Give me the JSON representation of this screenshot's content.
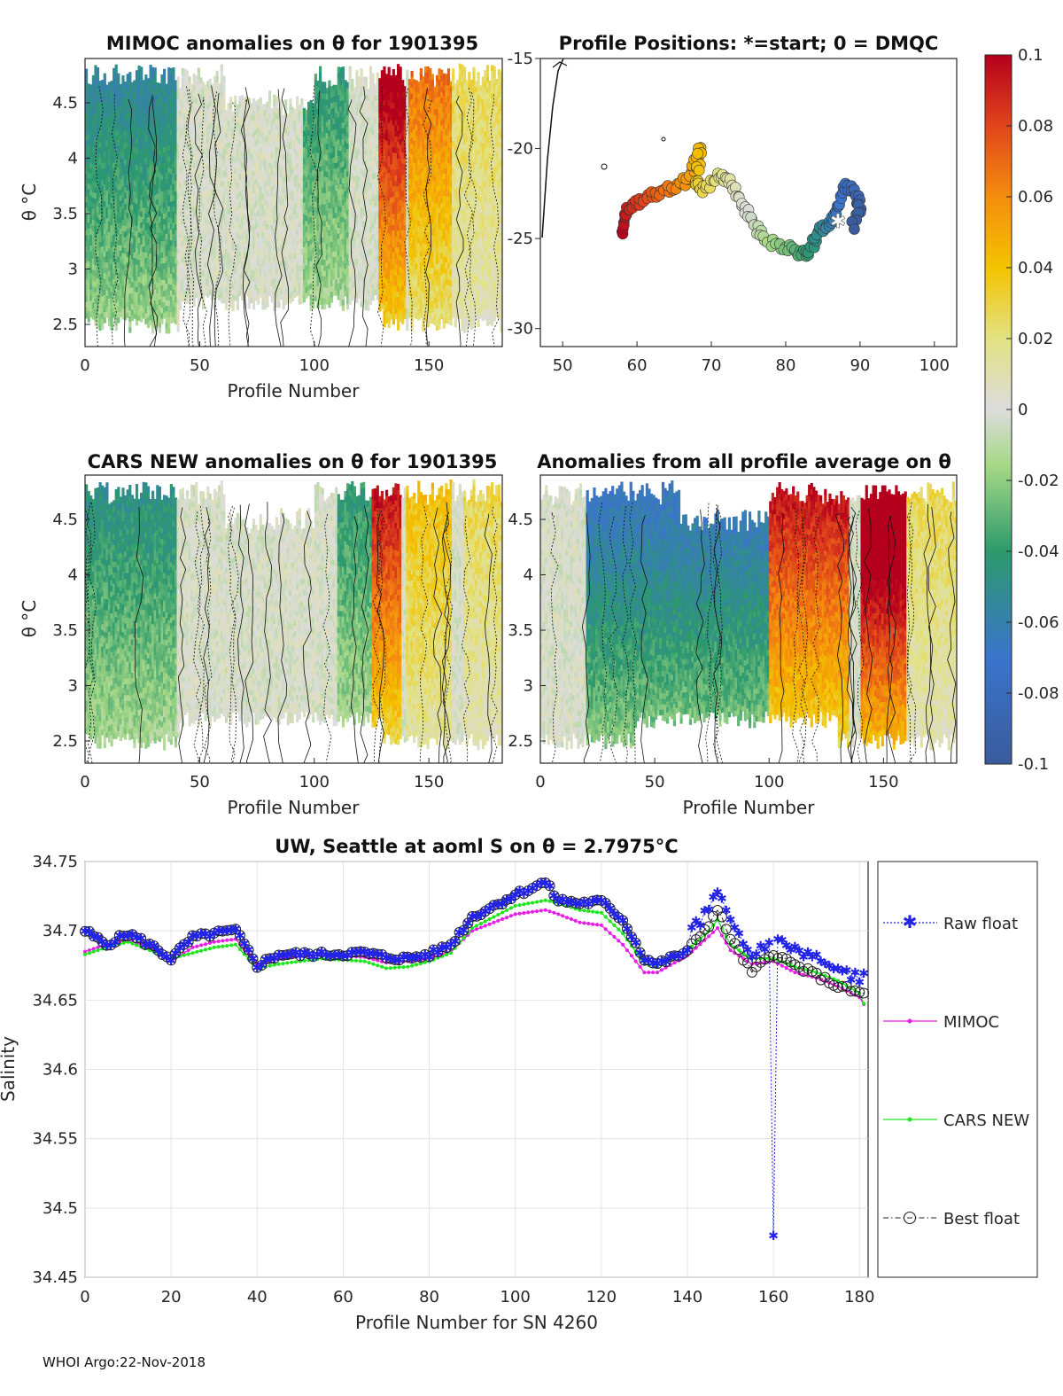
{
  "footer": "WHOI Argo:22-Nov-2018",
  "colorbar": {
    "ticks": [
      "0.1",
      "0.08",
      "0.06",
      "0.04",
      "0.02",
      "0",
      "-0.02",
      "-0.04",
      "-0.06",
      "-0.08",
      "-0.1"
    ],
    "range": [
      -0.1,
      0.1
    ]
  },
  "chart_data": [
    {
      "id": "mimoc",
      "type": "heatmap",
      "title": "MIMOC anomalies on θ  for 1901395",
      "xlabel": "Profile Number",
      "ylabel": "θ °C",
      "xlim": [
        0,
        182
      ],
      "ylim": [
        2.3,
        4.9
      ],
      "xticks": [
        "0",
        "50",
        "100",
        "150"
      ],
      "yticks": [
        "4.5",
        "4",
        "3.5",
        "3",
        "2.5"
      ],
      "hot_zones": [
        [
          128,
          140,
          0.08
        ],
        [
          141,
          160,
          0.05
        ],
        [
          160,
          182,
          0.02
        ]
      ],
      "cool_zones": [
        [
          0,
          40,
          -0.04
        ],
        [
          95,
          115,
          -0.03
        ]
      ]
    },
    {
      "id": "positions",
      "type": "scatter",
      "title": "Profile Positions: *=start; 0 = DMQC",
      "xlim": [
        47,
        103
      ],
      "ylim": [
        -31,
        -15
      ],
      "xticks": [
        "50",
        "60",
        "70",
        "80",
        "90",
        "100"
      ],
      "yticks": [
        "-15",
        "-20",
        "-25",
        "-30"
      ],
      "track_lon": [
        58,
        58.5,
        60,
        62,
        64,
        66,
        67.5,
        68.5,
        68,
        69,
        71,
        72.5,
        74,
        75.5,
        77,
        79,
        81,
        82.5,
        83.5,
        84.5,
        86,
        87,
        88,
        89.5,
        90,
        89
      ],
      "track_lat": [
        -24.8,
        -23.5,
        -23,
        -22.6,
        -22.3,
        -22,
        -21.3,
        -19.9,
        -22,
        -22.3,
        -21.5,
        -21.8,
        -23,
        -24,
        -25,
        -25.4,
        -25.6,
        -25.9,
        -25.5,
        -24.5,
        -24.2,
        -23.3,
        -22,
        -22.5,
        -23.3,
        -24.3
      ]
    },
    {
      "id": "cars",
      "type": "heatmap",
      "title": "CARS NEW anomalies on θ for 1901395",
      "xlabel": "Profile Number",
      "ylabel": "θ °C",
      "xlim": [
        0,
        182
      ],
      "ylim": [
        2.3,
        4.9
      ],
      "xticks": [
        "0",
        "50",
        "100",
        "150"
      ],
      "yticks": [
        "4.5",
        "4",
        "3.5",
        "3",
        "2.5"
      ],
      "hot_zones": [
        [
          125,
          138,
          0.07
        ],
        [
          140,
          160,
          0.03
        ],
        [
          165,
          182,
          0.02
        ]
      ],
      "cool_zones": [
        [
          0,
          40,
          -0.035
        ],
        [
          110,
          125,
          -0.03
        ]
      ]
    },
    {
      "id": "average",
      "type": "heatmap",
      "title": "Anomalies from all profile average on θ",
      "xlabel": "Profile Number",
      "ylabel": "",
      "xlim": [
        0,
        182
      ],
      "ylim": [
        2.3,
        4.9
      ],
      "xticks": [
        "0",
        "50",
        "100",
        "150"
      ],
      "yticks": [
        "4.5",
        "4",
        "3.5",
        "3",
        "2.5"
      ],
      "hot_zones": [
        [
          100,
          135,
          0.07
        ],
        [
          140,
          160,
          0.1
        ],
        [
          160,
          182,
          0.02
        ]
      ],
      "cool_zones": [
        [
          20,
          100,
          -0.05
        ]
      ]
    },
    {
      "id": "salinity",
      "type": "line",
      "title": "UW, Seattle at aoml S on θ = 2.7975°C",
      "xlabel": "Profile Number for SN 4260",
      "ylabel": "Salinity",
      "xlim": [
        0,
        182
      ],
      "ylim": [
        34.45,
        34.75
      ],
      "xticks": [
        "0",
        "20",
        "40",
        "60",
        "80",
        "100",
        "120",
        "140",
        "160",
        "180"
      ],
      "yticks": [
        "34.75",
        "34.7",
        "34.65",
        "34.6",
        "34.55",
        "34.5",
        "34.45"
      ],
      "legend": [
        "Raw float",
        "MIMOC",
        "CARS NEW",
        "Best float"
      ],
      "anchor_x": [
        0,
        5,
        10,
        15,
        20,
        25,
        30,
        35,
        40,
        45,
        55,
        65,
        70,
        75,
        80,
        85,
        90,
        100,
        107,
        110,
        115,
        120,
        125,
        130,
        133,
        140,
        145,
        147,
        150,
        155,
        160,
        165,
        170,
        175,
        180,
        182
      ],
      "best_float": [
        34.7,
        34.69,
        34.698,
        34.69,
        34.68,
        34.695,
        34.698,
        34.7,
        34.675,
        34.683,
        34.683,
        34.684,
        34.681,
        34.68,
        34.683,
        34.69,
        34.71,
        34.726,
        34.735,
        34.722,
        34.72,
        34.721,
        34.708,
        34.68,
        34.676,
        34.685,
        34.705,
        34.715,
        34.695,
        34.67,
        34.684,
        34.675,
        34.668,
        34.66,
        34.655,
        34.655
      ],
      "mimoc": [
        34.685,
        34.69,
        34.693,
        34.688,
        34.678,
        34.688,
        34.692,
        34.694,
        34.676,
        34.68,
        34.683,
        34.681,
        34.677,
        34.678,
        34.68,
        34.685,
        34.7,
        34.712,
        34.715,
        34.712,
        34.706,
        34.704,
        34.69,
        34.67,
        34.67,
        34.682,
        34.696,
        34.702,
        34.686,
        34.676,
        34.678,
        34.67,
        34.666,
        34.66,
        34.652,
        34.642
      ],
      "cars_new": [
        34.683,
        34.688,
        34.692,
        34.686,
        34.68,
        34.684,
        34.688,
        34.69,
        34.673,
        34.676,
        34.68,
        34.678,
        34.673,
        34.674,
        34.678,
        34.684,
        34.702,
        34.718,
        34.722,
        34.72,
        34.715,
        34.713,
        34.698,
        34.676,
        34.674,
        34.686,
        34.7,
        34.708,
        34.69,
        34.68,
        34.68,
        34.674,
        34.67,
        34.664,
        34.655,
        34.64
      ],
      "raw_spike": {
        "x": 160,
        "y": 34.48
      }
    }
  ]
}
